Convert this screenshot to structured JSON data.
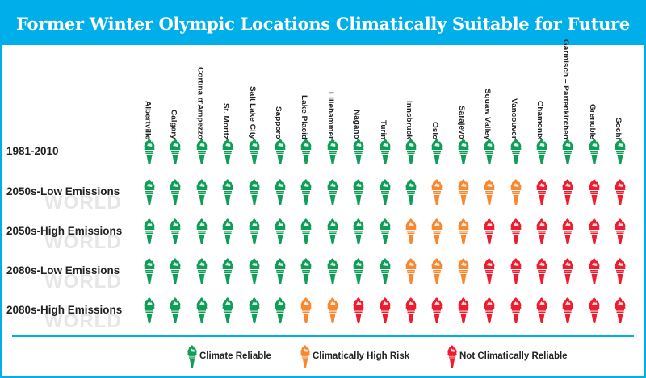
{
  "title": "Former Winter Olympic Locations Climatically Suitable for Future Games",
  "watermark": "WORLD",
  "colors": {
    "reliable": "#0f9d58",
    "high_risk": "#f7882f",
    "not_reliable": "#ee1c2e",
    "frame": "#00aeea"
  },
  "chart_data": {
    "type": "table",
    "title": "Former Winter Olympic Locations Climatically Suitable for Future Games",
    "columns": [
      "Albertville",
      "Calgary",
      "Cortina d'Ampezzo",
      "St. Moritz",
      "Salt Lake City",
      "Sapporo",
      "Lake Placid",
      "Lillehammer",
      "Nagano",
      "Turin",
      "Innsbruck",
      "Oslo",
      "Sarajevo",
      "Squaw Valley",
      "Vancouver",
      "Chamonix",
      "Garmisch – Partenkirchen",
      "Grenoble",
      "Sochi"
    ],
    "rows": [
      {
        "label": "1981-2010",
        "values": [
          "reliable",
          "reliable",
          "reliable",
          "reliable",
          "reliable",
          "reliable",
          "reliable",
          "reliable",
          "reliable",
          "reliable",
          "reliable",
          "reliable",
          "reliable",
          "reliable",
          "reliable",
          "reliable",
          "reliable",
          "reliable",
          "reliable"
        ]
      },
      {
        "label": "2050s-Low Emissions",
        "values": [
          "reliable",
          "reliable",
          "reliable",
          "reliable",
          "reliable",
          "reliable",
          "reliable",
          "reliable",
          "reliable",
          "reliable",
          "reliable",
          "high_risk",
          "high_risk",
          "high_risk",
          "high_risk",
          "not_reliable",
          "not_reliable",
          "not_reliable",
          "not_reliable"
        ]
      },
      {
        "label": "2050s-High Emissions",
        "values": [
          "reliable",
          "reliable",
          "reliable",
          "reliable",
          "reliable",
          "reliable",
          "reliable",
          "reliable",
          "reliable",
          "reliable",
          "high_risk",
          "high_risk",
          "high_risk",
          "not_reliable",
          "not_reliable",
          "not_reliable",
          "not_reliable",
          "not_reliable",
          "not_reliable"
        ]
      },
      {
        "label": "2080s-Low Emissions",
        "values": [
          "reliable",
          "reliable",
          "reliable",
          "reliable",
          "reliable",
          "reliable",
          "reliable",
          "reliable",
          "reliable",
          "reliable",
          "high_risk",
          "high_risk",
          "high_risk",
          "not_reliable",
          "not_reliable",
          "not_reliable",
          "not_reliable",
          "not_reliable",
          "not_reliable"
        ]
      },
      {
        "label": "2080s-High Emissions",
        "values": [
          "reliable",
          "reliable",
          "reliable",
          "reliable",
          "reliable",
          "reliable",
          "high_risk",
          "high_risk",
          "not_reliable",
          "not_reliable",
          "not_reliable",
          "not_reliable",
          "not_reliable",
          "not_reliable",
          "not_reliable",
          "not_reliable",
          "not_reliable",
          "not_reliable",
          "not_reliable"
        ]
      }
    ],
    "legend": [
      {
        "key": "reliable",
        "label": "Climate Reliable"
      },
      {
        "key": "high_risk",
        "label": "Climatically High Risk"
      },
      {
        "key": "not_reliable",
        "label": "Not Climatically  Reliable"
      }
    ],
    "legend_placement": "bottom"
  }
}
